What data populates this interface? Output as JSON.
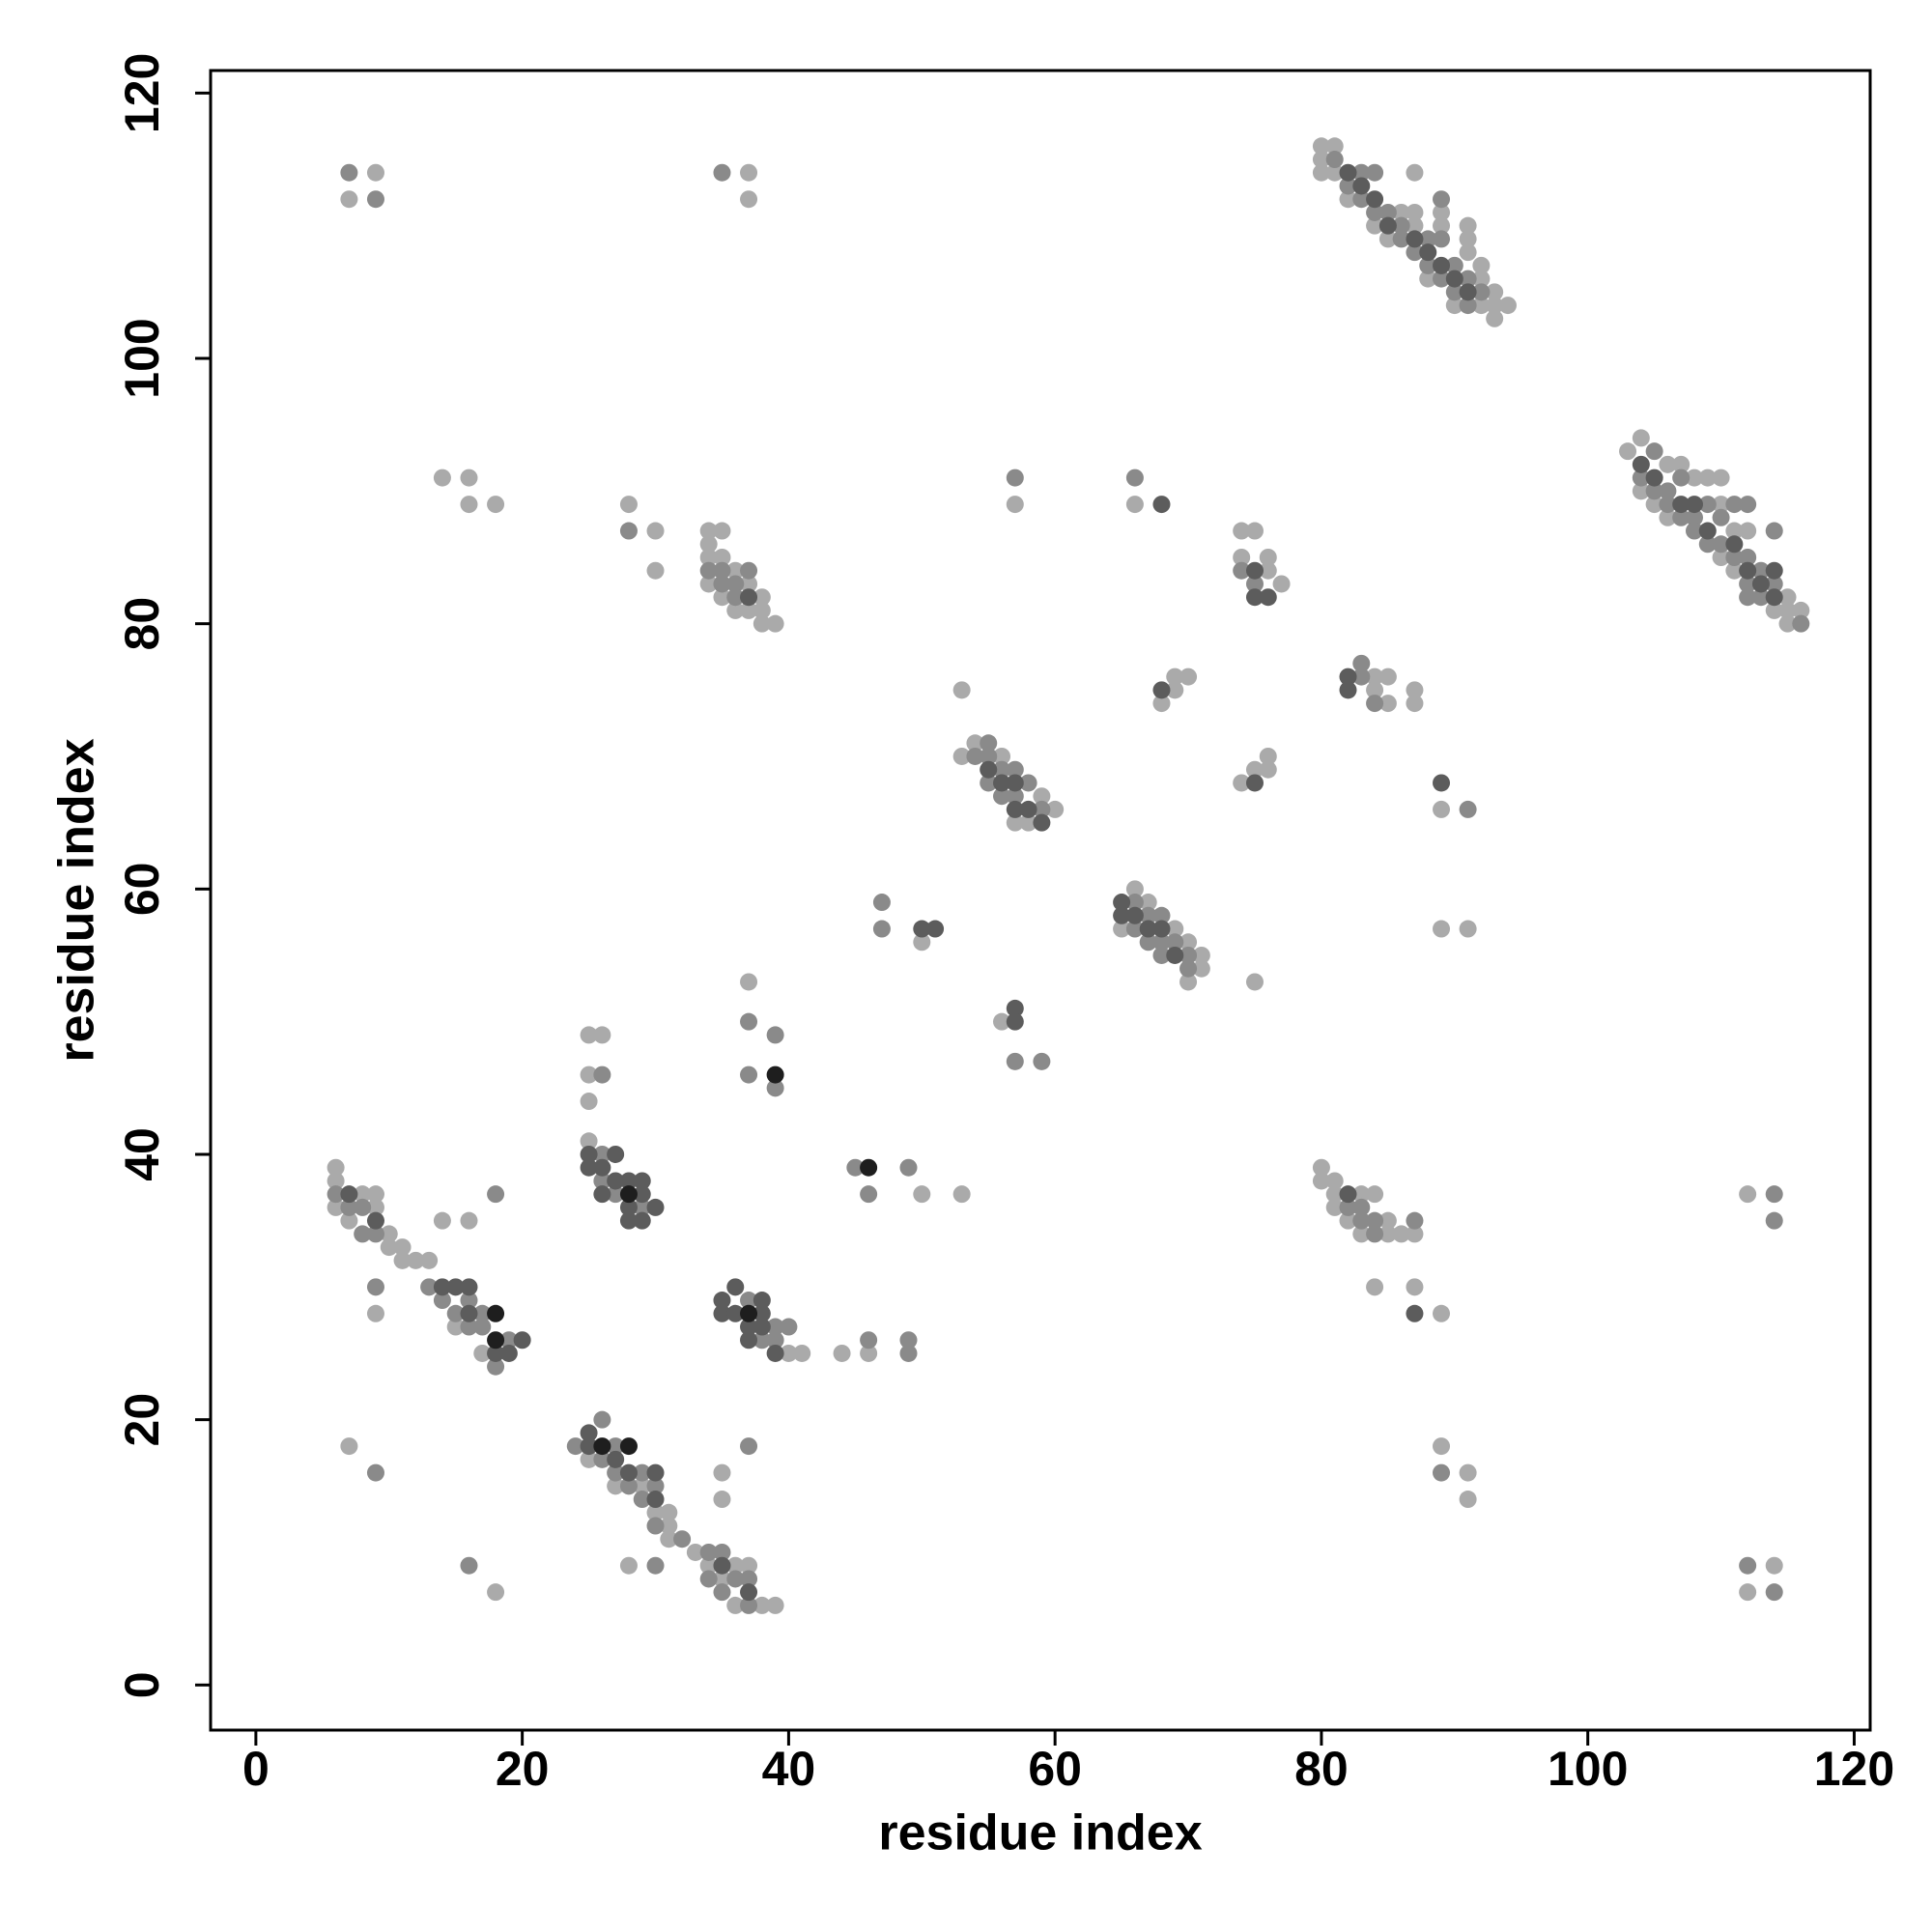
{
  "chart_data": {
    "type": "scatter",
    "x_label": "residue index",
    "y_label": "residue index",
    "xlim": [
      -3.4,
      121.2
    ],
    "ylim": [
      -3.4,
      121.7
    ],
    "xticks": [
      0,
      20,
      40,
      60,
      80,
      100,
      120
    ],
    "yticks": [
      0,
      20,
      40,
      60,
      80,
      100,
      120
    ],
    "series": [
      {
        "color": "#aaaaaa",
        "x": [
          9,
          7,
          37,
          37,
          80,
          80,
          80,
          81,
          81,
          82,
          84,
          85,
          86,
          87,
          87,
          87,
          88,
          89,
          89,
          90,
          91,
          91,
          91,
          92,
          92,
          92,
          93,
          93,
          93,
          94,
          103,
          104,
          104,
          105,
          106,
          106,
          107,
          108,
          109,
          110,
          110,
          110,
          111,
          111,
          112,
          114,
          115,
          115,
          115,
          116,
          6,
          6,
          6,
          7,
          8,
          9,
          9,
          10,
          10,
          11,
          11,
          12,
          13,
          14,
          15,
          16,
          17,
          9,
          7,
          18,
          14,
          16,
          16,
          18,
          28,
          30,
          30,
          34,
          34,
          34,
          34,
          35,
          35,
          35,
          36,
          36,
          37,
          37,
          38,
          38,
          38,
          39,
          25,
          25,
          26,
          25,
          25,
          37,
          40,
          41,
          44,
          46,
          50,
          53,
          25,
          27,
          29,
          30,
          28,
          35,
          35,
          31,
          31,
          31,
          33,
          34,
          35,
          36,
          36,
          37,
          38,
          39,
          50,
          53,
          53,
          54,
          56,
          57,
          58,
          59,
          60,
          56,
          57,
          66,
          65,
          66,
          67,
          69,
          70,
          70,
          71,
          71,
          75,
          68,
          69,
          69,
          70,
          74,
          75,
          74,
          76,
          76,
          77,
          74,
          75,
          76,
          76,
          84,
          84,
          85,
          85,
          87,
          87,
          89,
          89,
          91,
          80,
          80,
          81,
          81,
          81,
          82,
          83,
          83,
          84,
          85,
          85,
          86,
          87,
          84,
          87,
          89,
          89,
          91,
          91,
          112,
          114,
          112
        ],
        "y": [
          114,
          112,
          114,
          112,
          116,
          115,
          114,
          116,
          114,
          112,
          110,
          109,
          111,
          114,
          111,
          110,
          106,
          111,
          110,
          104,
          110,
          109,
          108,
          107,
          106,
          104,
          105,
          104,
          103,
          104,
          93,
          94,
          90,
          89,
          92,
          88,
          92,
          91,
          91,
          91,
          89,
          85,
          87,
          84,
          87,
          81,
          82,
          81,
          80,
          81,
          39,
          38,
          36,
          35,
          37,
          37,
          36,
          34,
          33,
          33,
          32,
          32,
          32,
          35,
          27,
          35,
          25,
          28,
          18,
          7,
          91,
          91,
          89,
          89,
          89,
          87,
          84,
          87,
          86,
          85,
          83,
          87,
          85,
          82,
          84,
          81,
          83,
          81,
          82,
          81,
          80,
          80,
          41,
          49,
          49,
          46,
          44,
          53,
          25,
          25,
          25,
          25,
          37,
          37,
          17,
          15,
          15,
          13,
          9,
          16,
          14,
          13,
          12,
          11,
          10,
          9,
          8,
          9,
          6,
          9,
          6,
          6,
          56,
          75,
          70,
          71,
          70,
          65,
          65,
          67,
          66,
          50,
          89,
          89,
          57,
          60,
          59,
          57,
          56,
          53,
          55,
          54,
          53,
          74,
          76,
          75,
          76,
          87,
          87,
          85,
          85,
          84,
          83,
          68,
          69,
          70,
          69,
          76,
          75,
          76,
          74,
          75,
          74,
          66,
          57,
          57,
          39,
          38,
          38,
          37,
          36,
          35,
          37,
          34,
          37,
          35,
          34,
          34,
          34,
          30,
          30,
          28,
          18,
          16,
          14,
          37,
          9,
          7
        ]
      },
      {
        "color": "#8a8a8a",
        "x": [
          7,
          9,
          35,
          81,
          82,
          83,
          83,
          84,
          84,
          85,
          86,
          86,
          87,
          88,
          88,
          89,
          89,
          89,
          90,
          90,
          91,
          91,
          92,
          104,
          105,
          105,
          106,
          106,
          107,
          107,
          108,
          108,
          109,
          109,
          110,
          110,
          111,
          111,
          112,
          112,
          112,
          112,
          113,
          113,
          114,
          114,
          116,
          6,
          7,
          8,
          8,
          9,
          13,
          14,
          15,
          16,
          16,
          17,
          17,
          18,
          18,
          19,
          9,
          9,
          16,
          28,
          34,
          35,
          35,
          36,
          36,
          37,
          26,
          26,
          27,
          29,
          26,
          37,
          39,
          37,
          39,
          37,
          38,
          39,
          39,
          40,
          46,
          49,
          49,
          45,
          46,
          49,
          24,
          26,
          26,
          27,
          27,
          28,
          29,
          29,
          30,
          30,
          30,
          37,
          32,
          34,
          34,
          35,
          35,
          36,
          37,
          37,
          47,
          47,
          54,
          55,
          55,
          55,
          56,
          56,
          57,
          57,
          58,
          59,
          57,
          59,
          57,
          66,
          66,
          66,
          67,
          67,
          68,
          68,
          68,
          69,
          70,
          70,
          74,
          75,
          83,
          83,
          84,
          91,
          82,
          83,
          83,
          84,
          84,
          87,
          89,
          114,
          114,
          112,
          114
        ],
        "y": [
          114,
          112,
          114,
          115,
          113,
          114,
          112,
          114,
          111,
          111,
          110,
          109,
          108,
          109,
          107,
          112,
          109,
          106,
          107,
          105,
          106,
          104,
          105,
          91,
          93,
          90,
          90,
          89,
          91,
          88,
          88,
          87,
          89,
          86,
          88,
          86,
          89,
          85,
          89,
          85,
          83,
          82,
          84,
          82,
          87,
          83,
          80,
          37,
          36,
          36,
          34,
          34,
          30,
          29,
          28,
          29,
          27,
          28,
          27,
          37,
          24,
          26,
          30,
          16,
          9,
          87,
          84,
          84,
          83,
          83,
          82,
          84,
          40,
          38,
          37,
          36,
          46,
          50,
          49,
          46,
          45,
          29,
          26,
          27,
          26,
          27,
          26,
          26,
          25,
          39,
          37,
          39,
          18,
          20,
          17,
          18,
          16,
          15,
          16,
          14,
          15,
          12,
          9,
          18,
          11,
          10,
          8,
          10,
          7,
          8,
          8,
          6,
          59,
          57,
          70,
          71,
          70,
          68,
          69,
          67,
          69,
          67,
          68,
          66,
          47,
          47,
          91,
          91,
          59,
          57,
          58,
          56,
          58,
          56,
          55,
          56,
          55,
          54,
          84,
          83,
          77,
          76,
          74,
          66,
          36,
          36,
          35,
          35,
          34,
          35,
          16,
          37,
          35,
          9,
          7
        ]
      },
      {
        "color": "#5c5c5c",
        "x": [
          82,
          83,
          84,
          85,
          87,
          88,
          89,
          90,
          91,
          104,
          105,
          107,
          108,
          109,
          111,
          112,
          113,
          114,
          114,
          7,
          9,
          14,
          15,
          16,
          16,
          18,
          19,
          20,
          37,
          25,
          25,
          26,
          26,
          27,
          27,
          28,
          28,
          28,
          29,
          29,
          29,
          30,
          35,
          35,
          36,
          36,
          37,
          37,
          38,
          38,
          38,
          39,
          25,
          25,
          27,
          28,
          30,
          30,
          35,
          37,
          50,
          51,
          55,
          56,
          57,
          57,
          58,
          59,
          57,
          57,
          68,
          65,
          65,
          66,
          67,
          68,
          69,
          68,
          75,
          75,
          76,
          75,
          82,
          82,
          89,
          82,
          87
        ],
        "y": [
          114,
          113,
          112,
          110,
          109,
          108,
          107,
          106,
          105,
          92,
          91,
          89,
          89,
          87,
          86,
          84,
          83,
          84,
          82,
          37,
          35,
          30,
          30,
          30,
          28,
          25,
          25,
          26,
          82,
          40,
          39,
          39,
          37,
          40,
          38,
          38,
          36,
          35,
          38,
          37,
          35,
          36,
          29,
          28,
          30,
          28,
          27,
          26,
          29,
          28,
          27,
          25,
          19,
          18,
          17,
          16,
          16,
          14,
          9,
          7,
          57,
          57,
          69,
          68,
          68,
          66,
          66,
          65,
          51,
          50,
          89,
          59,
          58,
          58,
          57,
          57,
          55,
          75,
          84,
          82,
          82,
          68,
          76,
          75,
          68,
          37,
          28
        ]
      },
      {
        "color": "#1e1e1e",
        "x": [
          18,
          18,
          28,
          39,
          37,
          46,
          26,
          28
        ],
        "y": [
          28,
          26,
          37,
          46,
          28,
          39,
          18,
          18
        ]
      }
    ]
  }
}
